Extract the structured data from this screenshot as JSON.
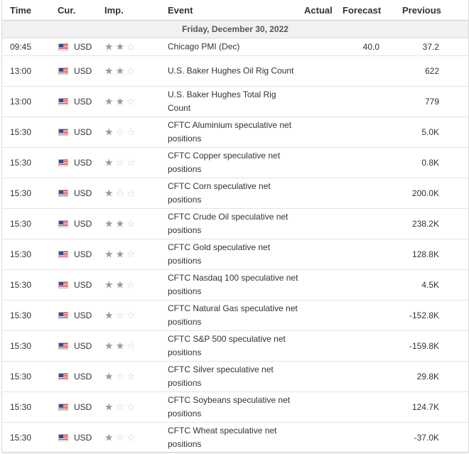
{
  "header": {
    "time": "Time",
    "currency": "Cur.",
    "importance": "Imp.",
    "event": "Event",
    "actual": "Actual",
    "forecast": "Forecast",
    "previous": "Previous"
  },
  "date_label": "Friday, December 30, 2022",
  "rows": [
    {
      "time": "09:45",
      "currency": "USD",
      "importance": 2,
      "event": "Chicago PMI (Dec)",
      "actual": "",
      "forecast": "40.0",
      "previous": "37.2"
    },
    {
      "time": "13:00",
      "currency": "USD",
      "importance": 2,
      "event": "U.S. Baker Hughes Oil Rig Count",
      "actual": "",
      "forecast": "",
      "previous": "622"
    },
    {
      "time": "13:00",
      "currency": "USD",
      "importance": 2,
      "event": "U.S. Baker Hughes Total Rig Count",
      "actual": "",
      "forecast": "",
      "previous": "779"
    },
    {
      "time": "15:30",
      "currency": "USD",
      "importance": 1,
      "event": "CFTC Aluminium speculative net positions",
      "actual": "",
      "forecast": "",
      "previous": "5.0K"
    },
    {
      "time": "15:30",
      "currency": "USD",
      "importance": 1,
      "event": "CFTC Copper speculative net positions",
      "actual": "",
      "forecast": "",
      "previous": "0.8K"
    },
    {
      "time": "15:30",
      "currency": "USD",
      "importance": 1,
      "event": "CFTC Corn speculative net positions",
      "actual": "",
      "forecast": "",
      "previous": "200.0K"
    },
    {
      "time": "15:30",
      "currency": "USD",
      "importance": 2,
      "event": "CFTC Crude Oil speculative net positions",
      "actual": "",
      "forecast": "",
      "previous": "238.2K"
    },
    {
      "time": "15:30",
      "currency": "USD",
      "importance": 2,
      "event": "CFTC Gold speculative net positions",
      "actual": "",
      "forecast": "",
      "previous": "128.8K"
    },
    {
      "time": "15:30",
      "currency": "USD",
      "importance": 2,
      "event": "CFTC Nasdaq 100 speculative net positions",
      "actual": "",
      "forecast": "",
      "previous": "4.5K"
    },
    {
      "time": "15:30",
      "currency": "USD",
      "importance": 1,
      "event": "CFTC Natural Gas speculative net positions",
      "actual": "",
      "forecast": "",
      "previous": "-152.8K"
    },
    {
      "time": "15:30",
      "currency": "USD",
      "importance": 2,
      "event": "CFTC S&P 500 speculative net positions",
      "actual": "",
      "forecast": "",
      "previous": "-159.8K"
    },
    {
      "time": "15:30",
      "currency": "USD",
      "importance": 1,
      "event": "CFTC Silver speculative net positions",
      "actual": "",
      "forecast": "",
      "previous": "29.8K"
    },
    {
      "time": "15:30",
      "currency": "USD",
      "importance": 1,
      "event": "CFTC Soybeans speculative net positions",
      "actual": "",
      "forecast": "",
      "previous": "124.7K"
    },
    {
      "time": "15:30",
      "currency": "USD",
      "importance": 1,
      "event": "CFTC Wheat speculative net positions",
      "actual": "",
      "forecast": "",
      "previous": "-37.0K"
    }
  ],
  "flag_icon": "us-flag-icon",
  "colors": {
    "star_on": "#9a9a9a",
    "star_off": "#cfcfcf",
    "date_bg": "#f1f1f1"
  }
}
